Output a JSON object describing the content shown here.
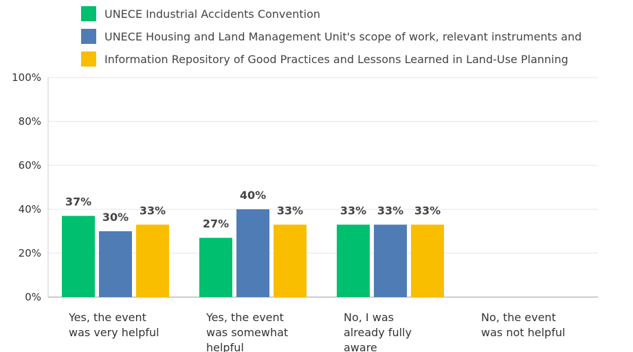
{
  "chart_data": {
    "type": "bar",
    "categories": [
      "Yes, the event was very helpful",
      "Yes, the event was somewhat helpful",
      "No, I was already fully aware",
      "No, the event was not helpful"
    ],
    "series": [
      {
        "name": "UNECE Industrial Accidents Convention",
        "color": "#00bf6f",
        "values": [
          37,
          27,
          33,
          null
        ],
        "value_labels": [
          "37%",
          "27%",
          "33%",
          null
        ]
      },
      {
        "name": "UNECE Housing and Land Management Unit's scope of work, relevant instruments and",
        "color": "#507cb6",
        "values": [
          30,
          40,
          33,
          null
        ],
        "value_labels": [
          "30%",
          "40%",
          "33%",
          null
        ]
      },
      {
        "name": "Information Repository of Good Practices and Lessons Learned in Land-Use Planning",
        "color": "#f9be00",
        "values": [
          33,
          33,
          33,
          null
        ],
        "value_labels": [
          "33%",
          "33%",
          "33%",
          null
        ]
      }
    ],
    "ylim": [
      0,
      100
    ],
    "yticks": [
      {
        "value": 0,
        "label": "0%"
      },
      {
        "value": 20,
        "label": "20%"
      },
      {
        "value": 40,
        "label": "40%"
      },
      {
        "value": 60,
        "label": "60%"
      },
      {
        "value": 80,
        "label": "80%"
      },
      {
        "value": 100,
        "label": "100%"
      }
    ],
    "grid": true,
    "legend": "top"
  }
}
